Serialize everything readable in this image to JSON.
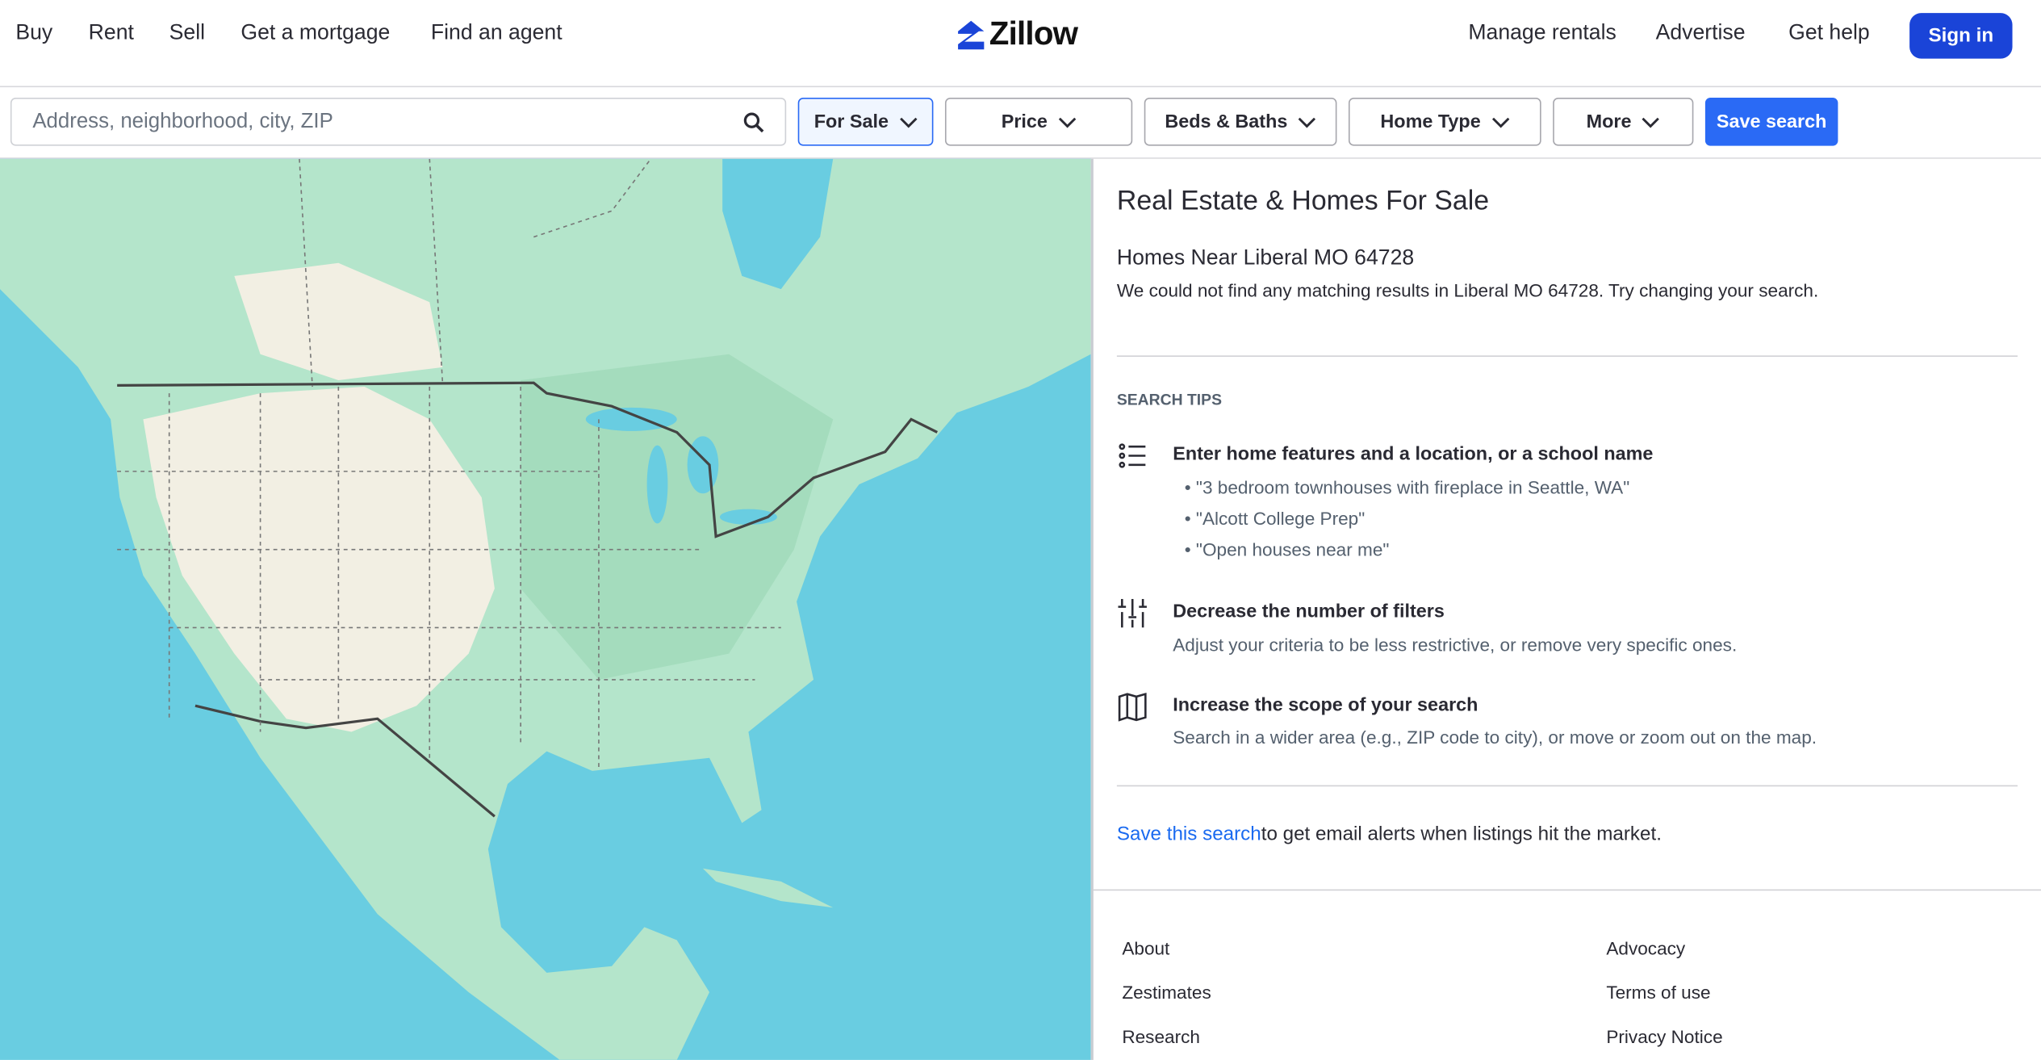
{
  "header": {
    "nav_left": [
      "Buy",
      "Rent",
      "Sell",
      "Get a mortgage",
      "Find an agent"
    ],
    "logo_text": "Zillow",
    "nav_right": [
      "Manage rentals",
      "Advertise",
      "Get help"
    ],
    "sign_in": "Sign in",
    "brand_color": "#1a44d8"
  },
  "search_bar": {
    "placeholder": "Address, neighborhood, city, ZIP",
    "value": "",
    "filters": [
      "For Sale",
      "Price",
      "Beds & Baths",
      "Home Type",
      "More"
    ],
    "active_filter": "For Sale",
    "save_search": "Save search"
  },
  "results": {
    "title": "Real Estate & Homes For Sale",
    "subtitle": "Homes Near Liberal MO 64728",
    "message": "We could not find any matching results in Liberal MO 64728. Try changing your search.",
    "tips_heading": "SEARCH TIPS",
    "tips": [
      {
        "icon": "list-icon",
        "title": "Enter home features and a location, or a school name",
        "examples": [
          "\"3 bedroom townhouses with fireplace in Seattle, WA\"",
          "\"Alcott College Prep\"",
          "\"Open houses near me\""
        ]
      },
      {
        "icon": "sliders-icon",
        "title": "Decrease the number of filters",
        "text": "Adjust your criteria to be less restrictive, or remove very specific ones."
      },
      {
        "icon": "map-icon",
        "title": "Increase the scope of your search",
        "text": "Search in a wider area (e.g., ZIP code to city), or move or zoom out on the map."
      }
    ],
    "save_link": "Save this search",
    "save_text": "to get email alerts when listings hit the market."
  },
  "footer": {
    "col1": [
      "About",
      "Zestimates",
      "Research"
    ],
    "col2": [
      "Advocacy",
      "Terms of use",
      "Privacy Notice"
    ]
  }
}
